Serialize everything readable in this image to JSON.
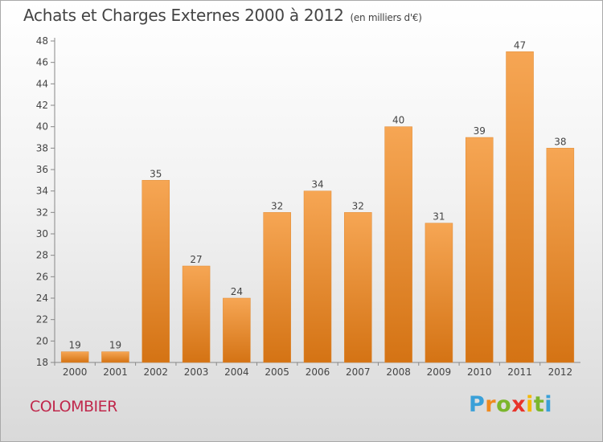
{
  "header": {
    "title": "Achats et Charges Externes 2000 à 2012",
    "subtitle": "(en milliers d'€)"
  },
  "footer": {
    "city": "COLOMBIER",
    "logo_text": "Proxiti"
  },
  "colors": {
    "bar_light": "#f6a654",
    "bar_dark": "#d47314",
    "axis": "#888888",
    "grid": "#cccccc",
    "city": "#c0284c"
  },
  "chart_data": {
    "type": "bar",
    "categories": [
      "2000",
      "2001",
      "2002",
      "2003",
      "2004",
      "2005",
      "2006",
      "2007",
      "2008",
      "2009",
      "2010",
      "2011",
      "2012"
    ],
    "values": [
      19,
      19,
      35,
      27,
      24,
      32,
      34,
      32,
      40,
      31,
      39,
      47,
      38
    ],
    "data_labels": [
      "19",
      "19",
      "35",
      "27",
      "24",
      "32",
      "34",
      "32",
      "40",
      "31",
      "39",
      "47",
      "38"
    ],
    "yticks": [
      "18",
      "20",
      "22",
      "24",
      "26",
      "28",
      "30",
      "32",
      "34",
      "36",
      "38",
      "40",
      "42",
      "44",
      "46",
      "48"
    ],
    "ylim": [
      18,
      48
    ],
    "grid": false,
    "title": "Achats et Charges Externes 2000 à 2012",
    "xlabel": "",
    "ylabel": ""
  }
}
